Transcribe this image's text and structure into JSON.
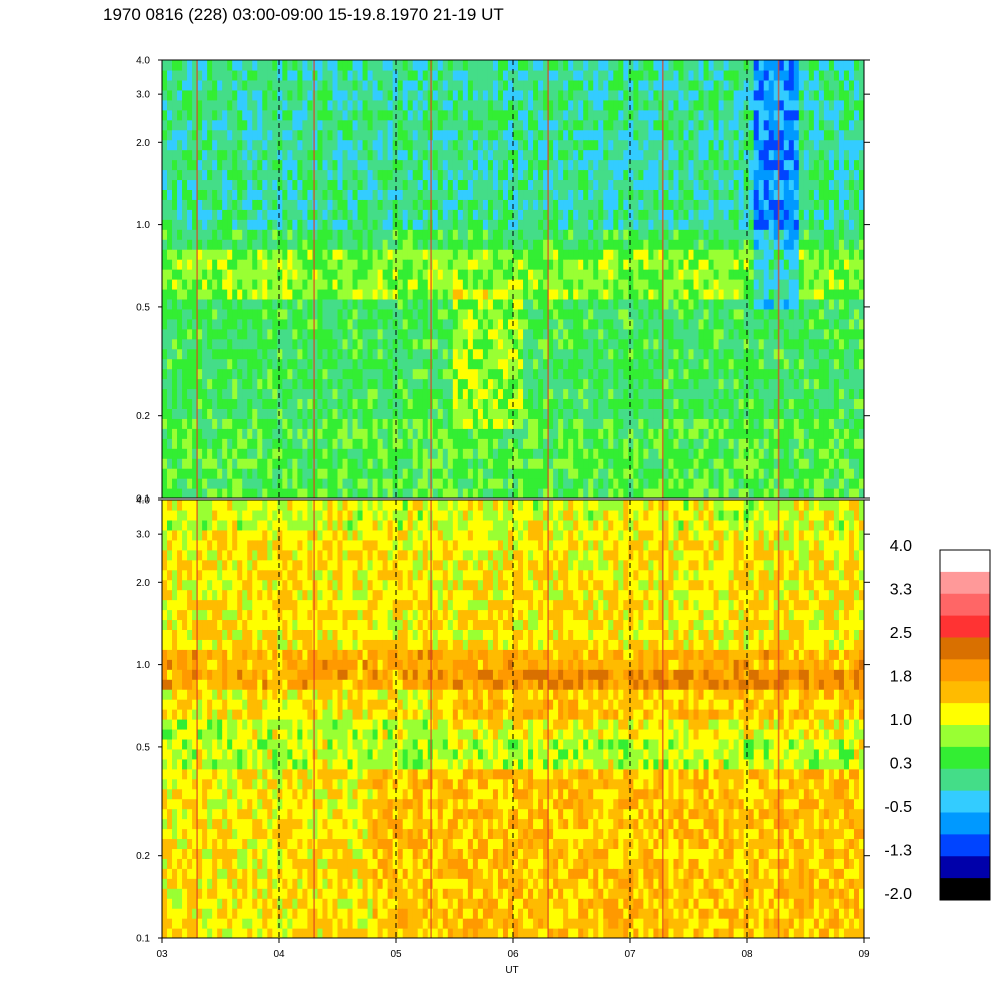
{
  "title": "1970 0816 (228) 03:00-09:00 15-19.8.1970  21-19 UT",
  "chart_data": {
    "type": "heatmap",
    "xlabel": "UT",
    "x_ticks": [
      "03",
      "04",
      "05",
      "06",
      "07",
      "08",
      "09"
    ],
    "xlim": [
      3,
      9
    ],
    "panels": [
      {
        "id": "top",
        "y_scale": "log",
        "ylim": [
          0.1,
          4.0
        ],
        "y_ticks": [
          "4.0",
          "3.0",
          "2.0",
          "1.0",
          "0.5",
          "0.2",
          "0.1"
        ],
        "dominant_level": 0.3
      },
      {
        "id": "bottom",
        "y_scale": "log",
        "ylim": [
          0.1,
          4.0
        ],
        "y_ticks": [
          "4.0",
          "3.0",
          "2.0",
          "1.0",
          "0.5",
          "0.2",
          "0.1"
        ],
        "dominant_level": 1.5
      }
    ],
    "colorbar": {
      "labels": [
        "4.0",
        "3.3",
        "2.5",
        "1.8",
        "1.0",
        "0.3",
        "-0.5",
        "-1.3",
        "-2.0"
      ],
      "colors": [
        "#ffffff",
        "#ff9999",
        "#ff6666",
        "#ff3333",
        "#d97000",
        "#ff9900",
        "#ffbb00",
        "#ffff00",
        "#99ff33",
        "#33ee33",
        "#44dd88",
        "#33ccff",
        "#0099ff",
        "#0044ff",
        "#0000aa",
        "#000000"
      ]
    },
    "grid": "dashed vertical lines at each hour"
  }
}
